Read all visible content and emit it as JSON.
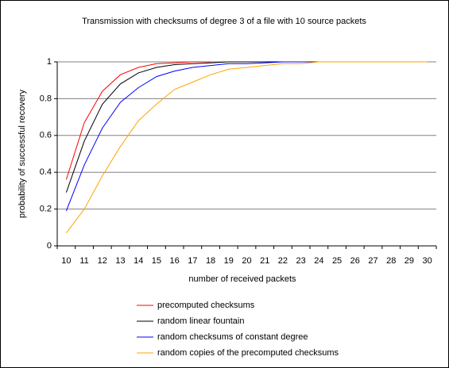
{
  "chart_data": {
    "type": "line",
    "title": "Transmission with checksums of degree 3 of a file with 10 source packets",
    "xlabel": "number of received packets",
    "ylabel": "probability of successful recovery",
    "categories": [
      10,
      11,
      12,
      13,
      14,
      15,
      16,
      17,
      18,
      19,
      20,
      21,
      22,
      23,
      24,
      25,
      26,
      27,
      28,
      29,
      30
    ],
    "ylim": [
      0,
      1
    ],
    "yticks": [
      0,
      0.2,
      0.4,
      0.6,
      0.8,
      1
    ],
    "grid": true,
    "legend": "bottom",
    "series": [
      {
        "name": "precomputed checksums",
        "color": "#ff0000",
        "values": [
          0.36,
          0.67,
          0.84,
          0.93,
          0.97,
          0.99,
          0.995,
          1,
          1,
          null,
          null,
          null,
          null,
          null,
          null,
          null,
          null,
          null,
          null,
          null,
          null
        ]
      },
      {
        "name": "random linear fountain",
        "color": "#000000",
        "values": [
          0.29,
          0.57,
          0.77,
          0.88,
          0.94,
          0.97,
          0.985,
          0.99,
          0.995,
          1,
          1,
          1,
          1,
          1,
          null,
          null,
          null,
          null,
          null,
          null,
          null
        ]
      },
      {
        "name": "random checksums of constant degree",
        "color": "#0000ff",
        "values": [
          0.19,
          0.44,
          0.64,
          0.78,
          0.86,
          0.92,
          0.95,
          0.97,
          0.98,
          0.99,
          0.99,
          0.995,
          1,
          1,
          1,
          1,
          null,
          null,
          null,
          null,
          null
        ]
      },
      {
        "name": "random copies of the precomputed checksums",
        "color": "#ffa500",
        "values": [
          0.07,
          0.2,
          0.38,
          0.54,
          0.68,
          0.77,
          0.85,
          0.89,
          0.93,
          0.96,
          0.97,
          0.98,
          0.99,
          0.99,
          1,
          1,
          1,
          1,
          1,
          1,
          1
        ]
      }
    ]
  }
}
